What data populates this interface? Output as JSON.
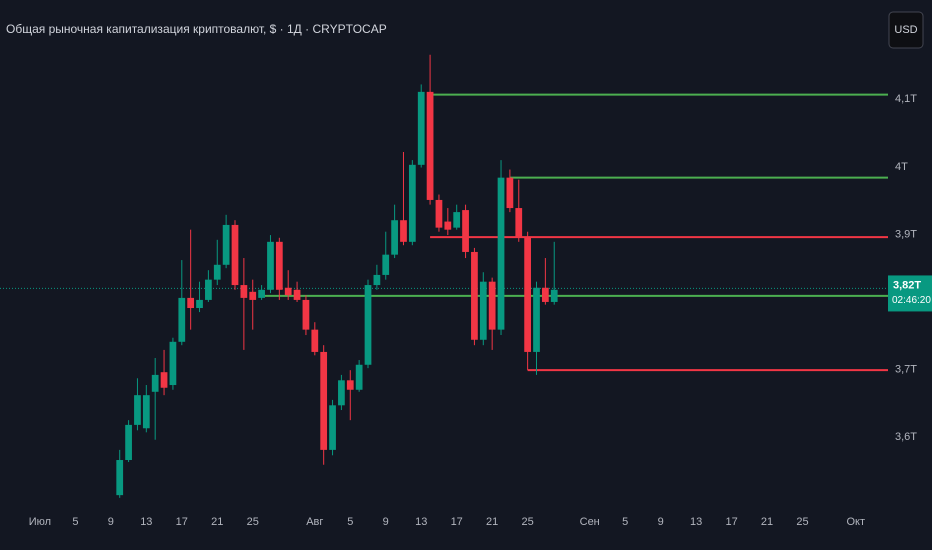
{
  "chart_data": {
    "type": "candlestick",
    "title": "Общая рыночная капитализация криптовалют, $ · 1Д · CRYPTOCAP",
    "currency": "USD",
    "up_color": "#089981",
    "down_color": "#f23645",
    "x": [
      9,
      10,
      11,
      12,
      13,
      14,
      15,
      16,
      17,
      18,
      19,
      20,
      21,
      22,
      23,
      24,
      25,
      26,
      27,
      28,
      29,
      30,
      31,
      32,
      33,
      34,
      35,
      36,
      37,
      38,
      39,
      40,
      41,
      42,
      43,
      44,
      45,
      46,
      47,
      48,
      49,
      50,
      51,
      52,
      53,
      54,
      55,
      56,
      57,
      58
    ],
    "open": [
      3.514,
      3.566,
      3.618,
      3.613,
      3.667,
      3.696,
      3.677,
      3.741,
      3.806,
      3.791,
      3.803,
      3.833,
      3.855,
      3.914,
      3.825,
      3.815,
      3.806,
      3.818,
      3.889,
      3.821,
      3.818,
      3.803,
      3.759,
      3.726,
      3.581,
      3.647,
      3.684,
      3.67,
      3.707,
      3.825,
      3.84,
      3.87,
      3.921,
      3.889,
      4.003,
      4.111,
      3.951,
      3.919,
      3.91,
      3.936,
      3.874,
      3.744,
      3.83,
      3.759,
      3.984,
      3.939,
      3.895,
      3.726,
      3.821,
      3.8
    ],
    "high": [
      3.581,
      3.625,
      3.687,
      3.677,
      3.717,
      3.729,
      3.747,
      3.862,
      3.907,
      3.83,
      3.847,
      3.892,
      3.929,
      3.921,
      3.865,
      3.833,
      3.825,
      3.899,
      3.895,
      3.847,
      3.83,
      3.81,
      3.77,
      3.736,
      3.655,
      3.692,
      3.699,
      3.714,
      3.833,
      3.855,
      3.904,
      3.944,
      4.022,
      4.01,
      4.122,
      4.166,
      3.959,
      3.939,
      3.944,
      3.944,
      3.88,
      3.844,
      3.836,
      4.01,
      3.996,
      3.981,
      3.904,
      3.83,
      3.865,
      3.889
    ],
    "low": [
      3.51,
      3.563,
      3.61,
      3.607,
      3.596,
      3.662,
      3.67,
      3.736,
      3.759,
      3.785,
      3.8,
      3.825,
      3.85,
      3.818,
      3.729,
      3.759,
      3.803,
      3.813,
      3.803,
      3.803,
      3.8,
      3.751,
      3.721,
      3.559,
      3.573,
      3.64,
      3.625,
      3.667,
      3.702,
      3.818,
      3.833,
      3.865,
      3.884,
      3.884,
      3.999,
      3.944,
      3.904,
      3.899,
      3.907,
      3.865,
      3.736,
      3.736,
      3.729,
      3.751,
      3.933,
      3.889,
      3.699,
      3.692,
      3.796,
      3.796
    ],
    "close": [
      3.566,
      3.618,
      3.662,
      3.662,
      3.692,
      3.673,
      3.741,
      3.806,
      3.791,
      3.803,
      3.833,
      3.855,
      3.914,
      3.825,
      3.806,
      3.803,
      3.818,
      3.889,
      3.818,
      3.81,
      3.803,
      3.759,
      3.726,
      3.581,
      3.647,
      3.684,
      3.67,
      3.707,
      3.825,
      3.84,
      3.87,
      3.921,
      3.889,
      4.003,
      4.111,
      3.951,
      3.91,
      3.907,
      3.933,
      3.874,
      3.744,
      3.83,
      3.759,
      3.984,
      3.939,
      3.895,
      3.726,
      3.821,
      3.8,
      3.818
    ],
    "levels": [
      {
        "value": 4.107,
        "start": 44,
        "color": "#4caf50"
      },
      {
        "value": 3.984,
        "start": 53,
        "color": "#4caf50"
      },
      {
        "value": 3.896,
        "start": 44,
        "color": "#f23645"
      },
      {
        "value": 3.809,
        "start": 25,
        "color": "#4caf50"
      },
      {
        "value": 3.699,
        "start": 55,
        "color": "#f23645"
      }
    ],
    "last_price": {
      "value": 3.82,
      "label": "3,82T",
      "countdown": "02:46:20"
    },
    "xlim": [
      -4.5,
      95.3
    ],
    "xticks": [
      {
        "value": 0,
        "label": "Июл"
      },
      {
        "value": 4,
        "label": "5"
      },
      {
        "value": 8,
        "label": "9"
      },
      {
        "value": 12,
        "label": "13"
      },
      {
        "value": 16,
        "label": "17"
      },
      {
        "value": 20,
        "label": "21"
      },
      {
        "value": 24,
        "label": "25"
      },
      {
        "value": 31,
        "label": "Авг"
      },
      {
        "value": 35,
        "label": "5"
      },
      {
        "value": 39,
        "label": "9"
      },
      {
        "value": 43,
        "label": "13"
      },
      {
        "value": 47,
        "label": "17"
      },
      {
        "value": 51,
        "label": "21"
      },
      {
        "value": 55,
        "label": "25"
      },
      {
        "value": 62,
        "label": "Сен"
      },
      {
        "value": 66,
        "label": "5"
      },
      {
        "value": 70,
        "label": "9"
      },
      {
        "value": 74,
        "label": "13"
      },
      {
        "value": 78,
        "label": "17"
      },
      {
        "value": 82,
        "label": "21"
      },
      {
        "value": 86,
        "label": "25"
      },
      {
        "value": 92,
        "label": "Окт"
      }
    ],
    "ylim": [
      3.492,
      4.247
    ],
    "yticks": [
      {
        "value": 3.6,
        "label": "3,6T"
      },
      {
        "value": 3.7,
        "label": "3,7T"
      },
      {
        "value": 3.9,
        "label": "3,9T"
      },
      {
        "value": 4,
        "label": "4T"
      },
      {
        "value": 4.1,
        "label": "4,1T"
      }
    ]
  }
}
